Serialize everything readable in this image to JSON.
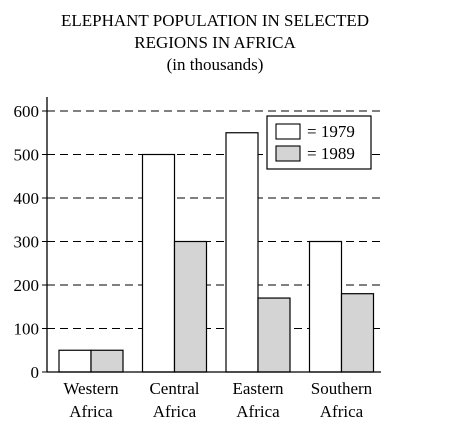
{
  "chart_data": {
    "type": "bar",
    "title": "ELEPHANT POPULATION IN SELECTED",
    "title_line2": "REGIONS IN AFRICA",
    "subtitle": "(in thousands)",
    "categories": [
      [
        "Western",
        "Africa"
      ],
      [
        "Central",
        "Africa"
      ],
      [
        "Eastern",
        "Africa"
      ],
      [
        "Southern",
        "Africa"
      ]
    ],
    "series": [
      {
        "name": "= 1979",
        "values": [
          50,
          500,
          550,
          300
        ],
        "color": "#ffffff"
      },
      {
        "name": "= 1989",
        "values": [
          50,
          300,
          170,
          180
        ],
        "color": "#d4d4d4"
      }
    ],
    "ylim": [
      0,
      600
    ],
    "yticks": [
      "0",
      "100",
      "200",
      "300",
      "400",
      "500",
      "600"
    ],
    "grid": "dashed-horizontal",
    "legend_position": "top-right"
  }
}
